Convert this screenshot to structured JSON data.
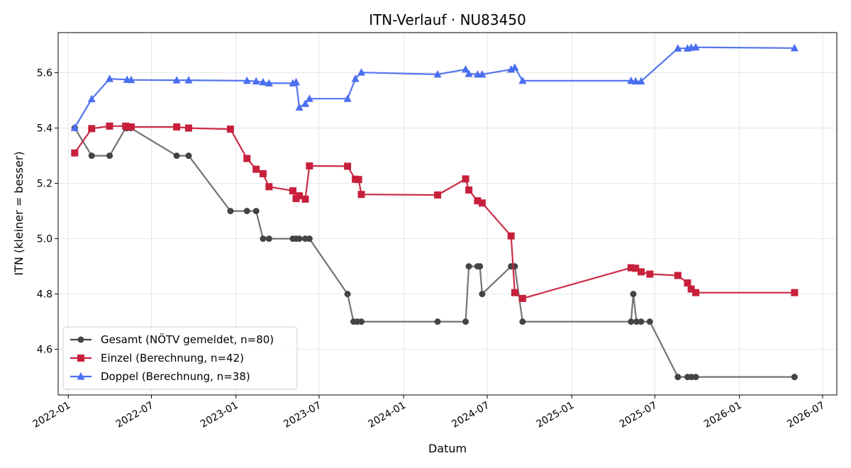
{
  "chart_data": {
    "type": "line",
    "title": "ITN-Verlauf · NU83450",
    "xlabel": "Datum",
    "ylabel": "ITN  (kleiner = besser)",
    "x_ticks": [
      "2022-01",
      "2022-07",
      "2023-01",
      "2023-07",
      "2024-01",
      "2024-07",
      "2025-01",
      "2025-07",
      "2026-01",
      "2026-07"
    ],
    "y_ticks": [
      "4.6",
      "4.8",
      "5.0",
      "5.2",
      "5.4",
      "5.6"
    ],
    "xlim": [
      "2021-12-10",
      "2026-08-01"
    ],
    "ylim": [
      4.435,
      5.745
    ],
    "grid": true,
    "legend": "lower-left",
    "series": [
      {
        "name": "Gesamt (NÖTV gemeldet, n=80)",
        "color": "#444444",
        "marker": "circle",
        "points": [
          [
            "2022-01-15",
            5.4
          ],
          [
            "2022-02-21",
            5.3
          ],
          [
            "2022-04-01",
            5.3
          ],
          [
            "2022-05-06",
            5.4
          ],
          [
            "2022-05-09",
            5.4
          ],
          [
            "2022-05-17",
            5.4
          ],
          [
            "2022-08-25",
            5.3
          ],
          [
            "2022-09-20",
            5.3
          ],
          [
            "2022-12-20",
            5.1
          ],
          [
            "2023-01-25",
            5.1
          ],
          [
            "2023-02-14",
            5.1
          ],
          [
            "2023-03-01",
            5.0
          ],
          [
            "2023-03-14",
            5.0
          ],
          [
            "2023-05-05",
            5.0
          ],
          [
            "2023-05-12",
            5.0
          ],
          [
            "2023-05-19",
            5.0
          ],
          [
            "2023-06-01",
            5.0
          ],
          [
            "2023-06-10",
            5.0
          ],
          [
            "2023-09-01",
            4.8
          ],
          [
            "2023-09-14",
            4.7
          ],
          [
            "2023-09-22",
            4.7
          ],
          [
            "2023-10-01",
            4.7
          ],
          [
            "2024-03-15",
            4.7
          ],
          [
            "2024-05-15",
            4.7
          ],
          [
            "2024-05-22",
            4.9
          ],
          [
            "2024-06-10",
            4.9
          ],
          [
            "2024-06-15",
            4.9
          ],
          [
            "2024-06-20",
            4.8
          ],
          [
            "2024-08-22",
            4.9
          ],
          [
            "2024-08-30",
            4.9
          ],
          [
            "2024-09-16",
            4.7
          ],
          [
            "2025-05-10",
            4.7
          ],
          [
            "2025-05-15",
            4.8
          ],
          [
            "2025-05-22",
            4.7
          ],
          [
            "2025-06-01",
            4.7
          ],
          [
            "2025-06-20",
            4.7
          ],
          [
            "2025-08-20",
            4.5
          ],
          [
            "2025-09-10",
            4.5
          ],
          [
            "2025-09-18",
            4.5
          ],
          [
            "2025-09-28",
            4.5
          ],
          [
            "2026-05-01",
            4.5
          ]
        ]
      },
      {
        "name": "Einzel (Berechnung, n=42)",
        "color": "#c8203c",
        "marker": "square",
        "points": [
          [
            "2022-01-15",
            5.31
          ],
          [
            "2022-02-21",
            5.398
          ],
          [
            "2022-04-01",
            5.407
          ],
          [
            "2022-05-06",
            5.407
          ],
          [
            "2022-05-11",
            5.404
          ],
          [
            "2022-05-18",
            5.404
          ],
          [
            "2022-08-25",
            5.404
          ],
          [
            "2022-09-20",
            5.4
          ],
          [
            "2022-12-20",
            5.396
          ],
          [
            "2023-01-25",
            5.29
          ],
          [
            "2023-02-14",
            5.251
          ],
          [
            "2023-03-01",
            5.235
          ],
          [
            "2023-03-14",
            5.188
          ],
          [
            "2023-05-05",
            5.173
          ],
          [
            "2023-05-12",
            5.145
          ],
          [
            "2023-05-19",
            5.155
          ],
          [
            "2023-06-01",
            5.143
          ],
          [
            "2023-06-10",
            5.263
          ],
          [
            "2023-09-01",
            5.262
          ],
          [
            "2023-09-18",
            5.215
          ],
          [
            "2023-09-25",
            5.214
          ],
          [
            "2023-10-01",
            5.16
          ],
          [
            "2024-03-15",
            5.158
          ],
          [
            "2024-05-15",
            5.216
          ],
          [
            "2024-05-22",
            5.176
          ],
          [
            "2024-06-10",
            5.137
          ],
          [
            "2024-06-20",
            5.129
          ],
          [
            "2024-08-22",
            5.01
          ],
          [
            "2024-08-30",
            4.805
          ],
          [
            "2024-09-16",
            4.784
          ],
          [
            "2025-05-10",
            4.895
          ],
          [
            "2025-05-20",
            4.893
          ],
          [
            "2025-06-01",
            4.88
          ],
          [
            "2025-06-20",
            4.872
          ],
          [
            "2025-08-20",
            4.867
          ],
          [
            "2025-09-10",
            4.84
          ],
          [
            "2025-09-18",
            4.818
          ],
          [
            "2025-09-28",
            4.805
          ],
          [
            "2026-05-01",
            4.805
          ]
        ]
      },
      {
        "name": "Doppel (Berechnung, n=38)",
        "color": "#4a6ef0",
        "marker": "triangle",
        "points": [
          [
            "2022-01-15",
            5.401
          ],
          [
            "2022-02-21",
            5.505
          ],
          [
            "2022-04-01",
            5.578
          ],
          [
            "2022-05-09",
            5.575
          ],
          [
            "2022-05-18",
            5.574
          ],
          [
            "2022-08-25",
            5.573
          ],
          [
            "2022-09-20",
            5.573
          ],
          [
            "2023-01-25",
            5.571
          ],
          [
            "2023-02-14",
            5.569
          ],
          [
            "2023-03-01",
            5.566
          ],
          [
            "2023-03-14",
            5.562
          ],
          [
            "2023-05-05",
            5.562
          ],
          [
            "2023-05-12",
            5.566
          ],
          [
            "2023-05-19",
            5.475
          ],
          [
            "2023-06-01",
            5.488
          ],
          [
            "2023-06-10",
            5.506
          ],
          [
            "2023-09-01",
            5.506
          ],
          [
            "2023-09-18",
            5.578
          ],
          [
            "2023-10-01",
            5.601
          ],
          [
            "2024-03-15",
            5.594
          ],
          [
            "2024-05-15",
            5.612
          ],
          [
            "2024-05-22",
            5.596
          ],
          [
            "2024-06-10",
            5.594
          ],
          [
            "2024-06-20",
            5.594
          ],
          [
            "2024-08-22",
            5.612
          ],
          [
            "2024-08-30",
            5.619
          ],
          [
            "2024-09-16",
            5.571
          ],
          [
            "2025-05-10",
            5.571
          ],
          [
            "2025-05-20",
            5.569
          ],
          [
            "2025-06-01",
            5.569
          ],
          [
            "2025-08-20",
            5.688
          ],
          [
            "2025-09-10",
            5.688
          ],
          [
            "2025-09-18",
            5.691
          ],
          [
            "2025-09-28",
            5.692
          ],
          [
            "2026-05-01",
            5.689
          ]
        ]
      }
    ]
  }
}
